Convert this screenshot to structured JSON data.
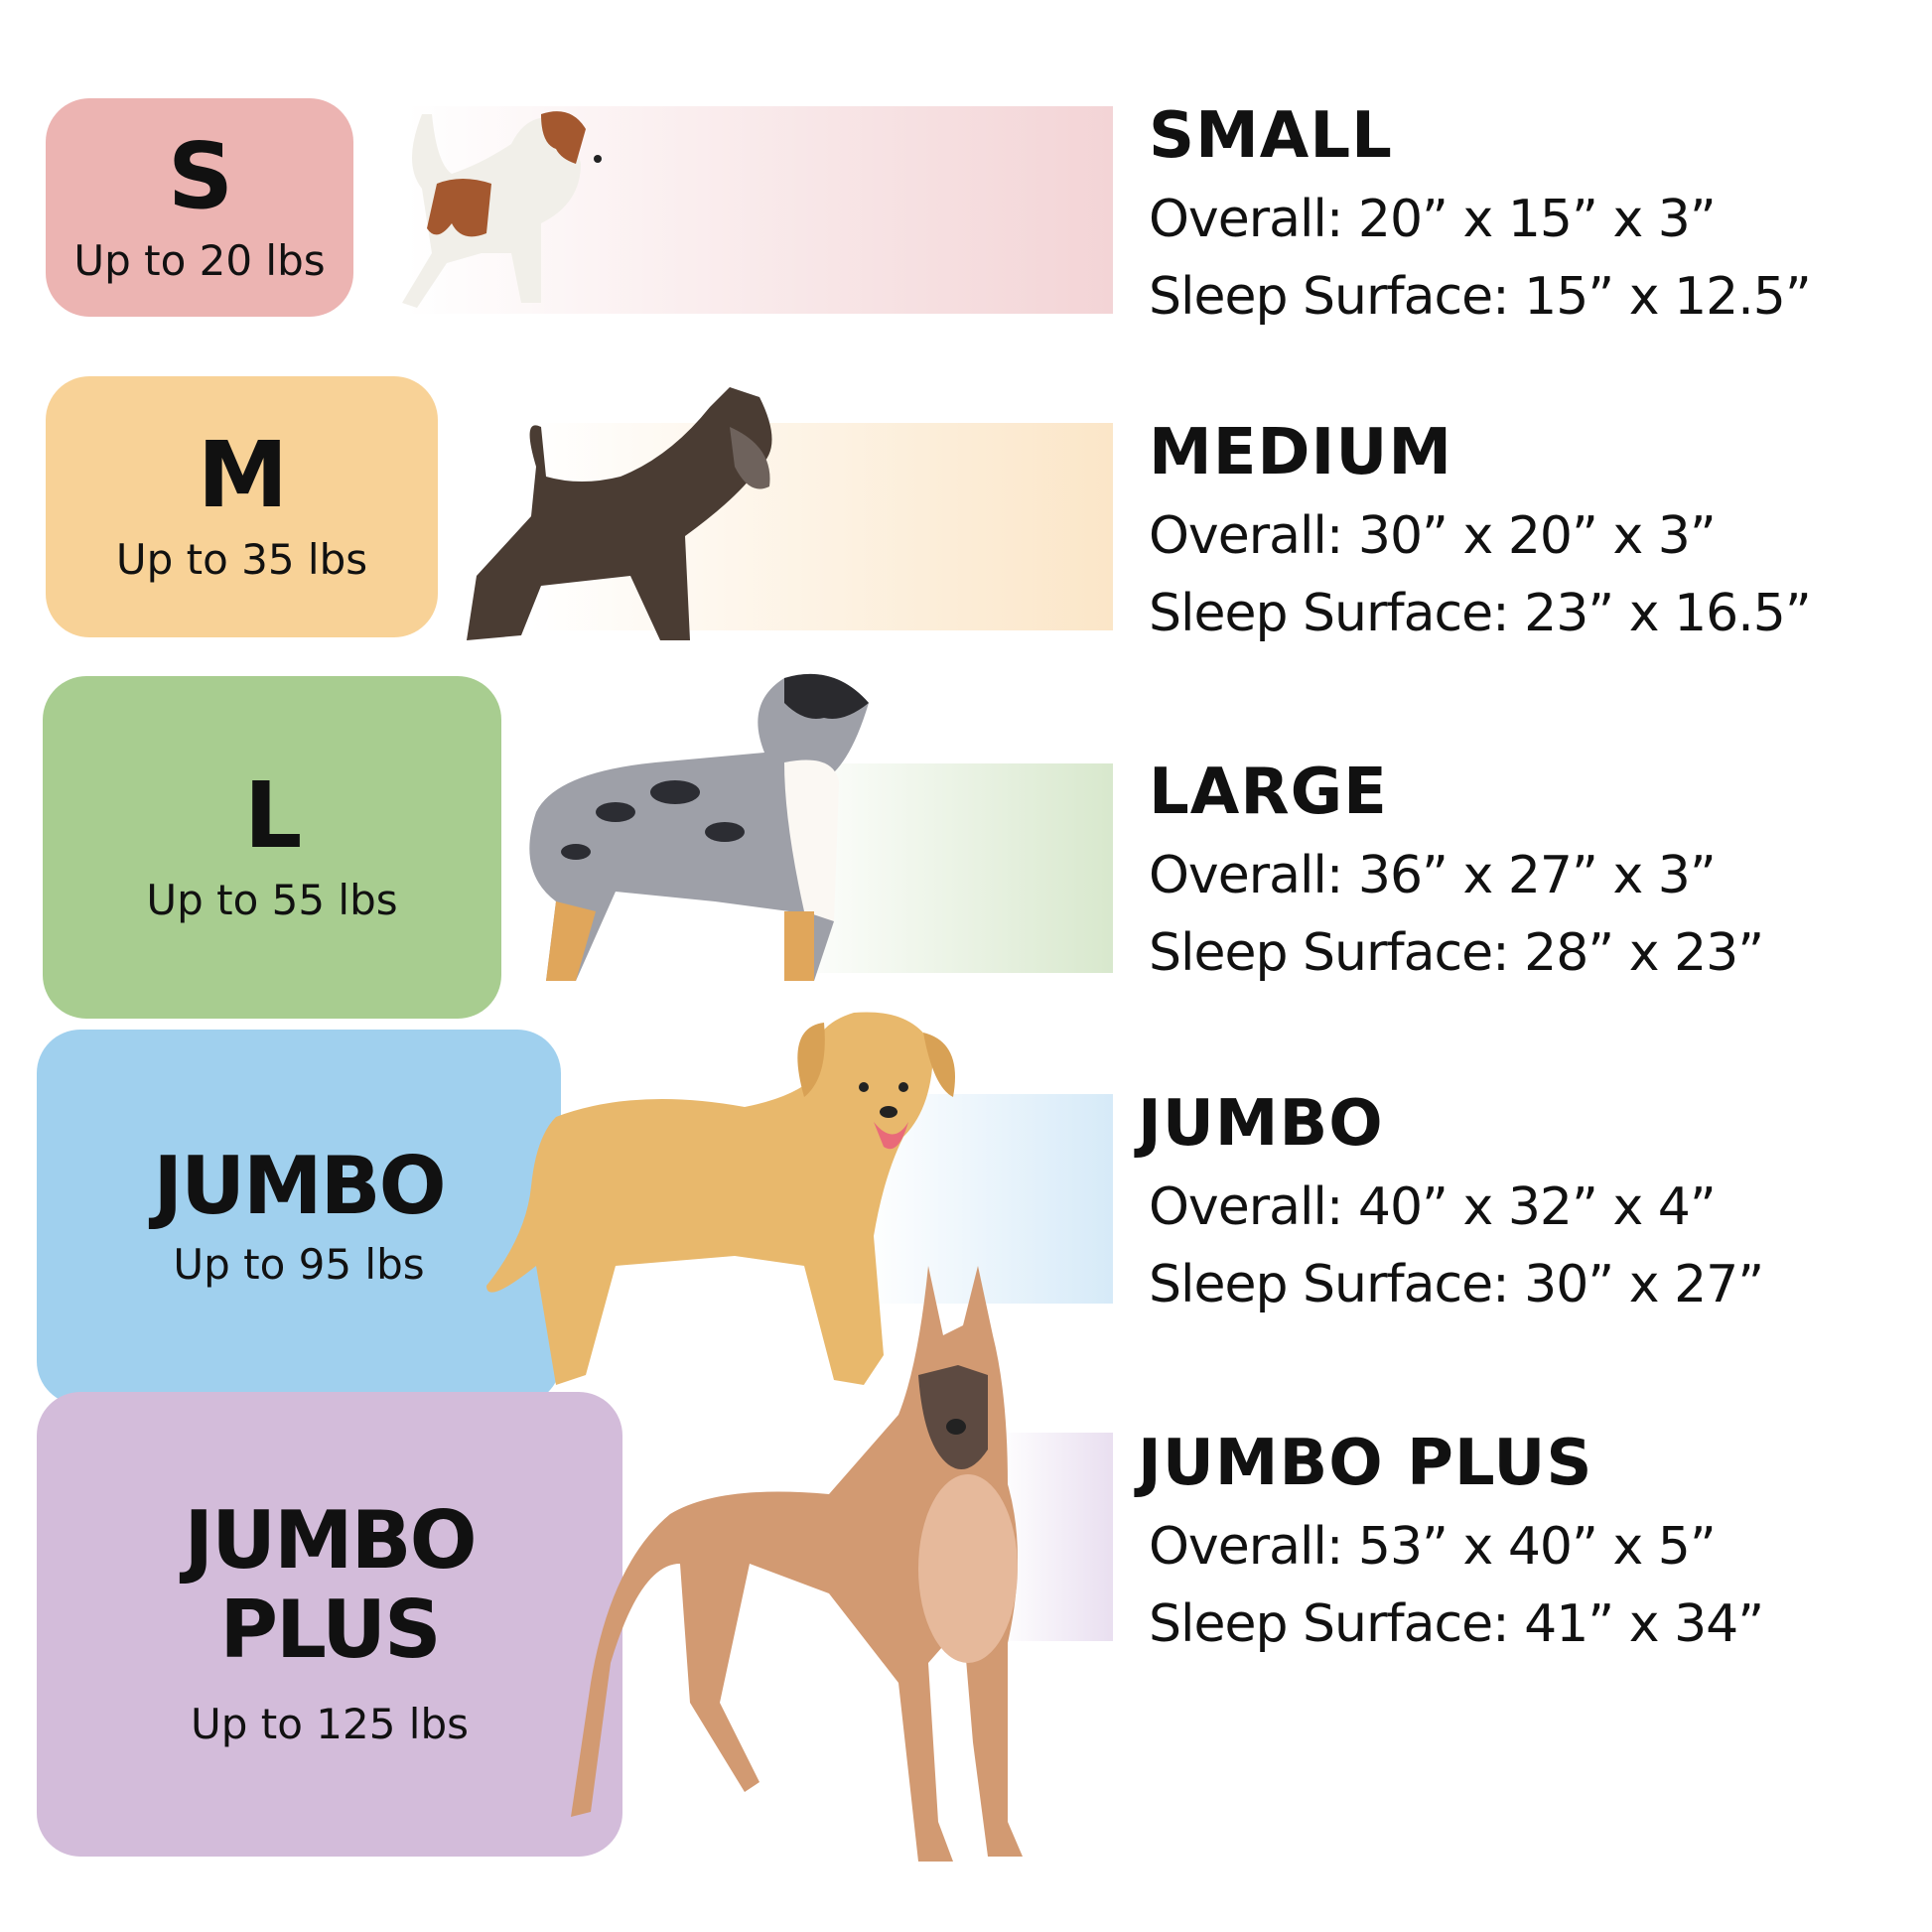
{
  "sizes": [
    {
      "code": "S",
      "weight": "Up to 20 lbs",
      "title": "SMALL",
      "overall": "Overall: 20” x 15” x 3”",
      "sleep": "Sleep Surface: 15” x 12.5”",
      "color": "#ecb4b2",
      "band": "#f3d4d6",
      "dog": "small-spotted-terrier"
    },
    {
      "code": "M",
      "weight": "Up to 35 lbs",
      "title": "MEDIUM",
      "overall": "Overall: 30” x 20” x 3”",
      "sleep": "Sleep Surface: 23” x 16.5”",
      "color": "#f8d297",
      "band": "#fbe6c8",
      "dog": "schnauzer"
    },
    {
      "code": "L",
      "weight": "Up to 55 lbs",
      "title": "LARGE",
      "overall": "Overall: 36” x 27” x 3”",
      "sleep": "Sleep Surface: 28” x 23”",
      "color": "#a8cd90",
      "band": "#d8e8cd",
      "dog": "australian-shepherd"
    },
    {
      "code": "JUMBO",
      "weight": "Up to 95 lbs",
      "title": "JUMBO",
      "overall": "Overall: 40” x 32” x 4”",
      "sleep": "Sleep Surface: 30” x 27”",
      "color": "#a0d0ee",
      "band": "#d6eaf8",
      "dog": "golden-retriever"
    },
    {
      "code_line1": "JUMBO",
      "code_line2": "PLUS",
      "weight": "Up to 125 lbs",
      "title": "JUMBO PLUS",
      "overall": "Overall: 53” x 40” x 5”",
      "sleep": "Sleep Surface: 41” x 34”",
      "color": "#d3bcda",
      "band": "#e9dff0",
      "dog": "great-dane"
    }
  ]
}
